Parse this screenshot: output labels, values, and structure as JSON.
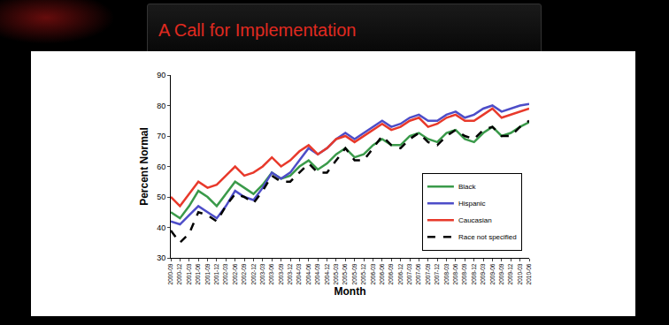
{
  "chart_data": {
    "type": "line",
    "title": "A Call for Implementation",
    "x_label": "Month",
    "y_label": "Percent Normal",
    "categories": [
      "2000-09",
      "2000-12",
      "2001-03",
      "2001-06",
      "2001-09",
      "2001-12",
      "2002-03",
      "2002-06",
      "2002-09",
      "2002-12",
      "2003-03",
      "2003-06",
      "2003-09",
      "2003-12",
      "2004-03",
      "2004-06",
      "2004-09",
      "2004-12",
      "2005-03",
      "2005-06",
      "2005-09",
      "2005-12",
      "2006-03",
      "2006-06",
      "2006-09",
      "2006-12",
      "2007-03",
      "2007-06",
      "2007-09",
      "2007-12",
      "2008-03",
      "2008-06",
      "2008-09",
      "2008-12",
      "2009-03",
      "2009-06",
      "2009-09",
      "2009-12",
      "2010-03",
      "2010-06"
    ],
    "series": [
      {
        "name": "Black",
        "color": "#3a9a4a",
        "line_style": "solid",
        "values": [
          45,
          43,
          47,
          52,
          50,
          47,
          51,
          55,
          53,
          51,
          54,
          58,
          56,
          57,
          60,
          62,
          59,
          61,
          64,
          66,
          63,
          64,
          67,
          69,
          67,
          67,
          70,
          71,
          69,
          68,
          71,
          72,
          69,
          68,
          71,
          73,
          70,
          71,
          73,
          74.5
        ]
      },
      {
        "name": "Hispanic",
        "color": "#4d4dc8",
        "line_style": "solid",
        "values": [
          42,
          41,
          44,
          47,
          45,
          43,
          47,
          52,
          50,
          49,
          53,
          58,
          56,
          58,
          62,
          66,
          64,
          66,
          69,
          71,
          69,
          71,
          73,
          75,
          73,
          74,
          76,
          77,
          75,
          75,
          77,
          78,
          76,
          77,
          79,
          80,
          78,
          79,
          80,
          80.5
        ]
      },
      {
        "name": "Caucasian",
        "color": "#e8392b",
        "line_style": "solid",
        "values": [
          50,
          47,
          51,
          55,
          53,
          54,
          57,
          60,
          57,
          58,
          60,
          63,
          60,
          62,
          65,
          67,
          64,
          66,
          69,
          70,
          68,
          70,
          72,
          74,
          72,
          73,
          75,
          76,
          73,
          74,
          76,
          77,
          75,
          75,
          77,
          79,
          76,
          77,
          78,
          79
        ]
      },
      {
        "name": "Race not specified",
        "color": "#000000",
        "line_style": "dashed",
        "values": [
          39,
          35,
          38,
          45,
          44,
          42,
          47,
          51,
          50,
          48,
          52,
          57,
          55,
          55,
          58,
          61,
          58,
          58,
          62,
          66,
          62,
          62,
          66,
          70,
          67,
          66,
          69,
          71,
          68,
          67,
          70,
          72,
          70,
          69,
          72,
          73,
          70,
          70,
          73,
          75
        ]
      }
    ],
    "ylim": [
      30,
      90
    ],
    "yticks": [
      30,
      40,
      50,
      60,
      70,
      80,
      90
    ],
    "grid": false,
    "legend": "bottom right"
  }
}
